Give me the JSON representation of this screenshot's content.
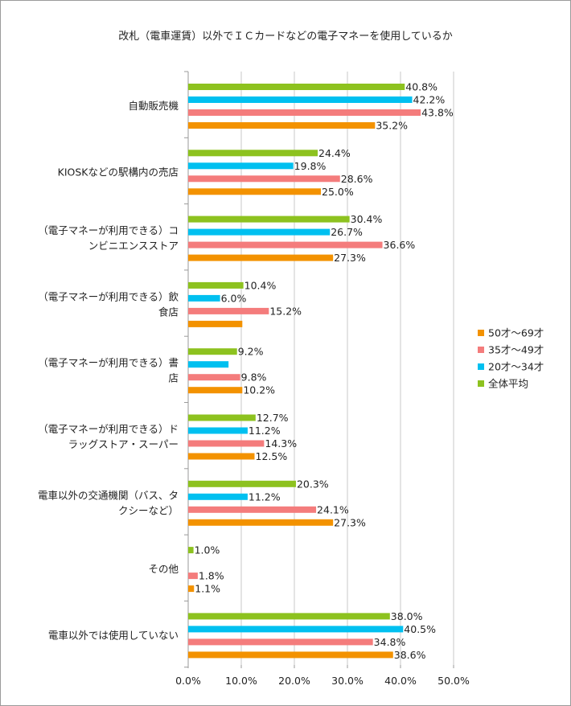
{
  "chart_data": {
    "type": "bar",
    "orientation": "horizontal",
    "title": "改札（電車運賃）以外でＩＣカードなどの電子マネーを使用しているか",
    "categories": [
      [
        "自動販売機"
      ],
      [
        "KIOSKなどの駅構内の売店"
      ],
      [
        "（電子マネーが利用できる）コ",
        "ンビニエンスストア"
      ],
      [
        "（電子マネーが利用できる）飲",
        "食店"
      ],
      [
        "（電子マネーが利用できる）書",
        "店"
      ],
      [
        "（電子マネーが利用できる）ド",
        "ラッグストア・スーパー"
      ],
      [
        "電車以外の交通機関（バス、タ",
        "クシーなど）"
      ],
      [
        "その他"
      ],
      [
        "電車以外では使用していない"
      ]
    ],
    "series": [
      {
        "name": "全体平均",
        "color": "#8dc21f",
        "values": [
          40.8,
          24.4,
          30.4,
          10.4,
          9.2,
          12.7,
          20.3,
          1.0,
          38.0
        ],
        "labels": [
          "40.8%",
          "24.4%",
          "30.4%",
          "10.4%",
          "9.2%",
          "12.7%",
          "20.3%",
          "1.0%",
          "38.0%"
        ]
      },
      {
        "name": "20才～34才",
        "color": "#00c0f0",
        "values": [
          42.2,
          19.8,
          26.7,
          6.0,
          7.6,
          11.2,
          11.2,
          0,
          40.5
        ],
        "labels": [
          "42.2%",
          "19.8%",
          "26.7%",
          "6.0%",
          "",
          "11.2%",
          "11.2%",
          "",
          "40.5%"
        ]
      },
      {
        "name": "35才～49才",
        "color": "#f47c7c",
        "values": [
          43.8,
          28.6,
          36.6,
          15.2,
          9.8,
          14.3,
          24.1,
          1.8,
          34.8
        ],
        "labels": [
          "43.8%",
          "28.6%",
          "36.6%",
          "15.2%",
          "9.8%",
          "14.3%",
          "24.1%",
          "1.8%",
          "34.8%"
        ]
      },
      {
        "name": "50才～69才",
        "color": "#f39200",
        "values": [
          35.2,
          25.0,
          27.3,
          10.2,
          10.2,
          12.5,
          27.3,
          1.1,
          38.6
        ],
        "labels": [
          "35.2%",
          "25.0%",
          "27.3%",
          "",
          "10.2%",
          "12.5%",
          "27.3%",
          "1.1%",
          "38.6%"
        ]
      }
    ],
    "xlim": [
      0,
      50
    ],
    "xticks": [
      "0.0%",
      "10.0%",
      "20.0%",
      "30.0%",
      "40.0%",
      "50.0%"
    ],
    "xtick_values": [
      0,
      10,
      20,
      30,
      40,
      50
    ],
    "grid": true,
    "legend_position": "right",
    "legend_order": [
      "50才～69才",
      "35才～49才",
      "20才～34才",
      "全体平均"
    ]
  }
}
